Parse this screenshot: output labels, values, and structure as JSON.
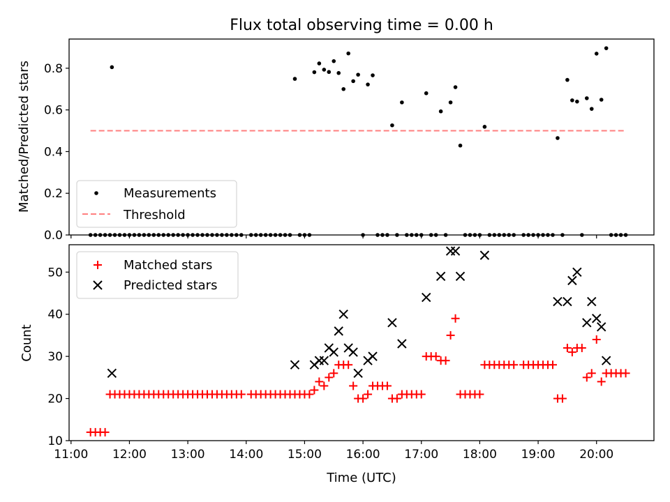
{
  "chart_data": [
    {
      "type": "scatter",
      "title": "Flux total observing time = 0.00 h",
      "ylabel": "Matched/Predicted stars",
      "xlabel": "",
      "xlim": [
        "10:58",
        "20:59"
      ],
      "ylim": [
        0,
        0.94
      ],
      "yticks": [
        "0.0",
        "0.2",
        "0.4",
        "0.6",
        "0.8"
      ],
      "grid": false,
      "legend_position": "lower-left",
      "series": [
        {
          "name": "Measurements",
          "marker": "dot",
          "color": "#000000",
          "points": [
            [
              "11:42",
              0.805
            ],
            [
              "14:50",
              0.749
            ],
            [
              "15:10",
              0.781
            ],
            [
              "15:15",
              0.823
            ],
            [
              "15:20",
              0.793
            ],
            [
              "15:25",
              0.782
            ],
            [
              "15:30",
              0.834
            ],
            [
              "15:35",
              0.777
            ],
            [
              "15:40",
              0.7
            ],
            [
              "15:45",
              0.871
            ],
            [
              "15:50",
              0.738
            ],
            [
              "15:55",
              0.769
            ],
            [
              "16:05",
              0.722
            ],
            [
              "16:10",
              0.766
            ],
            [
              "16:30",
              0.526
            ],
            [
              "16:40",
              0.636
            ],
            [
              "17:05",
              0.68
            ],
            [
              "17:20",
              0.593
            ],
            [
              "17:30",
              0.636
            ],
            [
              "17:35",
              0.709
            ],
            [
              "17:40",
              0.429
            ],
            [
              "18:05",
              0.519
            ],
            [
              "19:20",
              0.465
            ],
            [
              "19:30",
              0.744
            ],
            [
              "19:35",
              0.646
            ],
            [
              "19:40",
              0.64
            ],
            [
              "19:50",
              0.656
            ],
            [
              "19:55",
              0.605
            ],
            [
              "20:00",
              0.87
            ],
            [
              "20:05",
              0.649
            ],
            [
              "20:10",
              0.896
            ]
          ],
          "zero_points": [
            "11:20",
            "11:25",
            "11:30",
            "11:35",
            "11:40",
            "11:45",
            "11:50",
            "11:55",
            "12:00",
            "12:05",
            "12:10",
            "12:15",
            "12:20",
            "12:25",
            "12:30",
            "12:35",
            "12:40",
            "12:45",
            "12:50",
            "12:55",
            "13:00",
            "13:05",
            "13:10",
            "13:15",
            "13:20",
            "13:25",
            "13:30",
            "13:35",
            "13:40",
            "13:45",
            "13:50",
            "13:55",
            "14:05",
            "14:10",
            "14:15",
            "14:20",
            "14:25",
            "14:30",
            "14:35",
            "14:40",
            "14:45",
            "14:55",
            "15:00",
            "15:05",
            "16:00",
            "16:15",
            "16:20",
            "16:25",
            "16:35",
            "16:45",
            "16:50",
            "16:55",
            "17:00",
            "17:10",
            "17:15",
            "17:25",
            "17:45",
            "17:50",
            "17:55",
            "18:00",
            "18:10",
            "18:15",
            "18:20",
            "18:25",
            "18:30",
            "18:35",
            "18:45",
            "18:50",
            "18:55",
            "19:00",
            "19:05",
            "19:10",
            "19:15",
            "19:25",
            "19:45",
            "20:15",
            "20:20",
            "20:25",
            "20:30"
          ]
        },
        {
          "name": "Threshold",
          "style": "dashed",
          "color": "#ff7f7f",
          "x_range": [
            "11:20",
            "20:30"
          ],
          "y": 0.5
        }
      ]
    },
    {
      "type": "scatter",
      "title": "",
      "xlabel": "Time (UTC)",
      "ylabel": "Count",
      "xlim": [
        "10:58",
        "20:59"
      ],
      "ylim": [
        10,
        56.5
      ],
      "yticks": [
        "10",
        "20",
        "30",
        "40",
        "50"
      ],
      "xticks": [
        "11:00",
        "12:00",
        "13:00",
        "14:00",
        "15:00",
        "16:00",
        "17:00",
        "18:00",
        "19:00",
        "20:00"
      ],
      "grid": false,
      "legend_position": "top-left",
      "series": [
        {
          "name": "Matched stars",
          "marker": "plus",
          "color": "#ff0000",
          "points": [
            [
              "11:20",
              12
            ],
            [
              "11:25",
              12
            ],
            [
              "11:30",
              12
            ],
            [
              "11:35",
              12
            ],
            [
              "11:40",
              21
            ],
            [
              "11:45",
              21
            ],
            [
              "11:50",
              21
            ],
            [
              "11:55",
              21
            ],
            [
              "12:00",
              21
            ],
            [
              "12:05",
              21
            ],
            [
              "12:10",
              21
            ],
            [
              "12:15",
              21
            ],
            [
              "12:20",
              21
            ],
            [
              "12:25",
              21
            ],
            [
              "12:30",
              21
            ],
            [
              "12:35",
              21
            ],
            [
              "12:40",
              21
            ],
            [
              "12:45",
              21
            ],
            [
              "12:50",
              21
            ],
            [
              "12:55",
              21
            ],
            [
              "13:00",
              21
            ],
            [
              "13:05",
              21
            ],
            [
              "13:10",
              21
            ],
            [
              "13:15",
              21
            ],
            [
              "13:20",
              21
            ],
            [
              "13:25",
              21
            ],
            [
              "13:30",
              21
            ],
            [
              "13:35",
              21
            ],
            [
              "13:40",
              21
            ],
            [
              "13:45",
              21
            ],
            [
              "13:50",
              21
            ],
            [
              "13:55",
              21
            ],
            [
              "14:05",
              21
            ],
            [
              "14:10",
              21
            ],
            [
              "14:15",
              21
            ],
            [
              "14:20",
              21
            ],
            [
              "14:25",
              21
            ],
            [
              "14:30",
              21
            ],
            [
              "14:35",
              21
            ],
            [
              "14:40",
              21
            ],
            [
              "14:45",
              21
            ],
            [
              "14:50",
              21
            ],
            [
              "14:55",
              21
            ],
            [
              "15:00",
              21
            ],
            [
              "15:05",
              21
            ],
            [
              "15:10",
              22
            ],
            [
              "15:15",
              24
            ],
            [
              "15:20",
              23
            ],
            [
              "15:25",
              25
            ],
            [
              "15:30",
              26
            ],
            [
              "15:35",
              28
            ],
            [
              "15:40",
              28
            ],
            [
              "15:45",
              28
            ],
            [
              "15:50",
              23
            ],
            [
              "15:55",
              20
            ],
            [
              "16:00",
              20
            ],
            [
              "16:05",
              21
            ],
            [
              "16:10",
              23
            ],
            [
              "16:15",
              23
            ],
            [
              "16:20",
              23
            ],
            [
              "16:25",
              23
            ],
            [
              "16:30",
              20
            ],
            [
              "16:35",
              20
            ],
            [
              "16:40",
              21
            ],
            [
              "16:45",
              21
            ],
            [
              "16:50",
              21
            ],
            [
              "16:55",
              21
            ],
            [
              "17:00",
              21
            ],
            [
              "17:05",
              30
            ],
            [
              "17:10",
              30
            ],
            [
              "17:15",
              30
            ],
            [
              "17:20",
              29
            ],
            [
              "17:25",
              29
            ],
            [
              "17:30",
              35
            ],
            [
              "17:35",
              39
            ],
            [
              "17:40",
              21
            ],
            [
              "17:45",
              21
            ],
            [
              "17:50",
              21
            ],
            [
              "17:55",
              21
            ],
            [
              "18:00",
              21
            ],
            [
              "18:05",
              28
            ],
            [
              "18:10",
              28
            ],
            [
              "18:15",
              28
            ],
            [
              "18:20",
              28
            ],
            [
              "18:25",
              28
            ],
            [
              "18:30",
              28
            ],
            [
              "18:35",
              28
            ],
            [
              "18:45",
              28
            ],
            [
              "18:50",
              28
            ],
            [
              "18:55",
              28
            ],
            [
              "19:00",
              28
            ],
            [
              "19:05",
              28
            ],
            [
              "19:10",
              28
            ],
            [
              "19:15",
              28
            ],
            [
              "19:20",
              20
            ],
            [
              "19:25",
              20
            ],
            [
              "19:30",
              32
            ],
            [
              "19:35",
              31
            ],
            [
              "19:40",
              32
            ],
            [
              "19:45",
              32
            ],
            [
              "19:50",
              25
            ],
            [
              "19:55",
              26
            ],
            [
              "20:00",
              34
            ],
            [
              "20:05",
              24
            ],
            [
              "20:10",
              26
            ],
            [
              "20:15",
              26
            ],
            [
              "20:20",
              26
            ],
            [
              "20:25",
              26
            ],
            [
              "20:30",
              26
            ]
          ]
        },
        {
          "name": "Predicted stars",
          "marker": "x",
          "color": "#000000",
          "points": [
            [
              "11:42",
              26
            ],
            [
              "14:50",
              28
            ],
            [
              "15:10",
              28
            ],
            [
              "15:15",
              29
            ],
            [
              "15:20",
              29
            ],
            [
              "15:25",
              32
            ],
            [
              "15:30",
              31
            ],
            [
              "15:35",
              36
            ],
            [
              "15:40",
              40
            ],
            [
              "15:45",
              32
            ],
            [
              "15:50",
              31
            ],
            [
              "15:55",
              26
            ],
            [
              "16:05",
              29
            ],
            [
              "16:10",
              30
            ],
            [
              "16:30",
              38
            ],
            [
              "16:40",
              33
            ],
            [
              "17:05",
              44
            ],
            [
              "17:20",
              49
            ],
            [
              "17:30",
              55
            ],
            [
              "17:35",
              55
            ],
            [
              "17:40",
              49
            ],
            [
              "18:05",
              54
            ],
            [
              "19:20",
              43
            ],
            [
              "19:30",
              43
            ],
            [
              "19:35",
              48
            ],
            [
              "19:40",
              50
            ],
            [
              "19:50",
              38
            ],
            [
              "19:55",
              43
            ],
            [
              "20:00",
              39
            ],
            [
              "20:05",
              37
            ],
            [
              "20:10",
              29
            ]
          ]
        }
      ]
    }
  ]
}
